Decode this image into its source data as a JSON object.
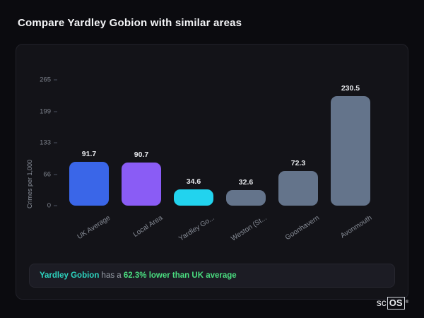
{
  "page": {
    "title": "Compare Yardley Gobion with similar areas"
  },
  "chart_data": {
    "type": "bar",
    "title": "",
    "ylabel": "Crimes per 1,000",
    "xlabel": "",
    "categories": [
      "UK Average",
      "Local Area",
      "Yardley Go...",
      "Weston (St...",
      "Goonhavern",
      "Avonmouth"
    ],
    "values": [
      91.7,
      90.7,
      34.6,
      32.6,
      72.3,
      230.5
    ],
    "bar_colors": [
      "#3a66e8",
      "#8a5cf5",
      "#22d3ee",
      "#64748b",
      "#64748b",
      "#64748b"
    ],
    "yticks": [
      265,
      199,
      133,
      66,
      0
    ],
    "ylim": [
      0,
      265
    ],
    "grid": false,
    "legend": "none",
    "value_label_color": "#e7e9ec",
    "axis_label_color": "#868b95"
  },
  "callout": {
    "subject": "Yardley Gobion",
    "connector": " has a ",
    "highlight": "62.3% lower than UK average",
    "subject_color": "#2dd4bf",
    "highlight_color": "#4ade80",
    "background": "#1c1c24"
  },
  "logo": {
    "prefix": "sc",
    "boxed": "OS",
    "registered": "®"
  }
}
